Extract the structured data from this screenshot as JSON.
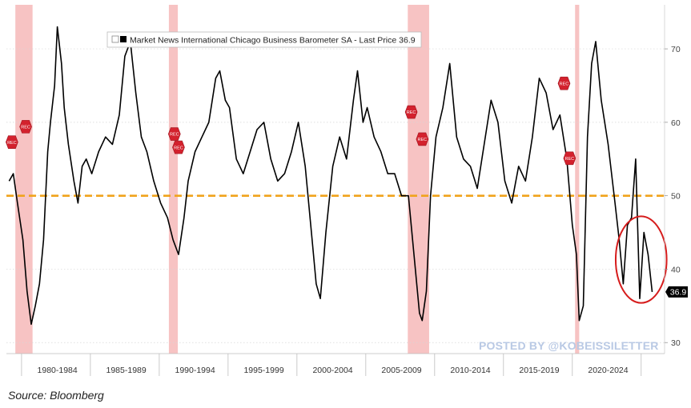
{
  "chart_data": {
    "type": "line",
    "title": "Market News International Chicago Business Barometer SA - Last Price 36.9",
    "legend_label": "Market News International Chicago Business Barometer SA - Last Price 36.9",
    "legend_placement": "top-center",
    "xlabel": "",
    "ylabel": "",
    "xlim": [
      1978.8,
      2026.6
    ],
    "ylim": [
      28.5,
      76
    ],
    "y_ticks": [
      30,
      40,
      50,
      60,
      70
    ],
    "x_ticks": [
      "1980-1984",
      "1985-1989",
      "1990-1994",
      "1995-1999",
      "2000-2004",
      "2005-2009",
      "2010-2014",
      "2015-2019",
      "2020-2024"
    ],
    "x_tick_centers": [
      1982.5,
      1987.5,
      1992.5,
      1997.5,
      2002.5,
      2007.5,
      2012.5,
      2017.5,
      2022.5
    ],
    "reference_line": {
      "y": 50,
      "color": "#f0a31c"
    },
    "last_value_label": "36.9",
    "recessions": [
      {
        "start": 1979.45,
        "end": 1980.7
      },
      {
        "start": 1990.6,
        "end": 1991.25
      },
      {
        "start": 2007.95,
        "end": 2009.5
      },
      {
        "start": 2020.1,
        "end": 2020.4
      }
    ],
    "rec_label": "REC",
    "rec_markers": [
      {
        "x": 1980.2,
        "y": 59.4
      },
      {
        "x": 1979.2,
        "y": 57.3
      },
      {
        "x": 1991.0,
        "y": 58.4
      },
      {
        "x": 1991.3,
        "y": 56.6
      },
      {
        "x": 2008.2,
        "y": 61.4
      },
      {
        "x": 2009.0,
        "y": 57.7
      },
      {
        "x": 2019.3,
        "y": 65.3
      },
      {
        "x": 2019.7,
        "y": 55.1
      }
    ],
    "highlight_ellipse": {
      "cx": 2024.9,
      "cy": 41.3,
      "rx": 1.85,
      "ry": 5.9,
      "color": "#d61c1c"
    },
    "series": [
      {
        "color": "#000000",
        "x": [
          1979.0,
          1979.3,
          1979.6,
          1980.0,
          1980.3,
          1980.6,
          1980.9,
          1981.2,
          1981.5,
          1981.8,
          1982.0,
          1982.3,
          1982.5,
          1982.8,
          1983.0,
          1983.3,
          1983.7,
          1984.0,
          1984.3,
          1984.6,
          1985.0,
          1985.5,
          1986.0,
          1986.5,
          1987.0,
          1987.4,
          1987.8,
          1988.2,
          1988.6,
          1989.0,
          1989.5,
          1990.0,
          1990.5,
          1990.9,
          1991.3,
          1991.7,
          1992.0,
          1992.5,
          1993.0,
          1993.5,
          1994.0,
          1994.3,
          1994.7,
          1995.0,
          1995.5,
          1996.0,
          1996.5,
          1997.0,
          1997.5,
          1998.0,
          1998.5,
          1999.0,
          1999.5,
          2000.0,
          2000.5,
          2001.0,
          2001.3,
          2001.6,
          2002.0,
          2002.5,
          2003.0,
          2003.5,
          2004.0,
          2004.3,
          2004.7,
          2005.0,
          2005.5,
          2006.0,
          2006.5,
          2007.0,
          2007.5,
          2008.0,
          2008.4,
          2008.8,
          2009.0,
          2009.3,
          2009.6,
          2010.0,
          2010.5,
          2011.0,
          2011.5,
          2012.0,
          2012.5,
          2013.0,
          2013.5,
          2014.0,
          2014.5,
          2015.0,
          2015.5,
          2016.0,
          2016.5,
          2017.0,
          2017.5,
          2018.0,
          2018.5,
          2019.0,
          2019.5,
          2019.9,
          2020.2,
          2020.4,
          2020.7,
          2021.0,
          2021.3,
          2021.6,
          2022.0,
          2022.5,
          2023.0,
          2023.3,
          2023.6,
          2023.9,
          2024.2,
          2024.5,
          2024.8,
          2025.1,
          2025.4,
          2025.7
        ],
        "y": [
          52,
          53,
          49,
          44,
          37,
          32.5,
          35,
          38,
          44,
          56,
          60,
          65,
          73,
          68,
          62,
          57,
          52,
          49,
          54,
          55,
          53,
          56,
          58,
          57,
          61,
          69,
          71,
          64,
          58,
          56,
          52,
          49,
          47,
          44,
          42,
          47,
          52,
          56,
          58,
          60,
          66,
          67,
          63,
          62,
          55,
          53,
          56,
          59,
          60,
          55,
          52,
          53,
          56,
          60,
          54,
          44,
          38,
          36,
          45,
          54,
          58,
          55,
          63,
          67,
          60,
          62,
          58,
          56,
          53,
          53,
          50,
          50,
          42,
          34,
          33,
          37,
          50,
          58,
          62,
          68,
          58,
          55,
          54,
          51,
          57,
          63,
          60,
          52,
          49,
          54,
          52,
          58,
          66,
          64,
          59,
          61,
          55,
          46,
          42,
          33,
          35,
          58,
          68,
          71,
          63,
          57,
          49,
          44,
          38,
          46,
          47,
          55,
          36,
          45,
          42,
          36.9
        ]
      }
    ]
  },
  "source_note": "Source: Bloomberg",
  "watermark": "POSTED BY @KOBEISSILETTER"
}
